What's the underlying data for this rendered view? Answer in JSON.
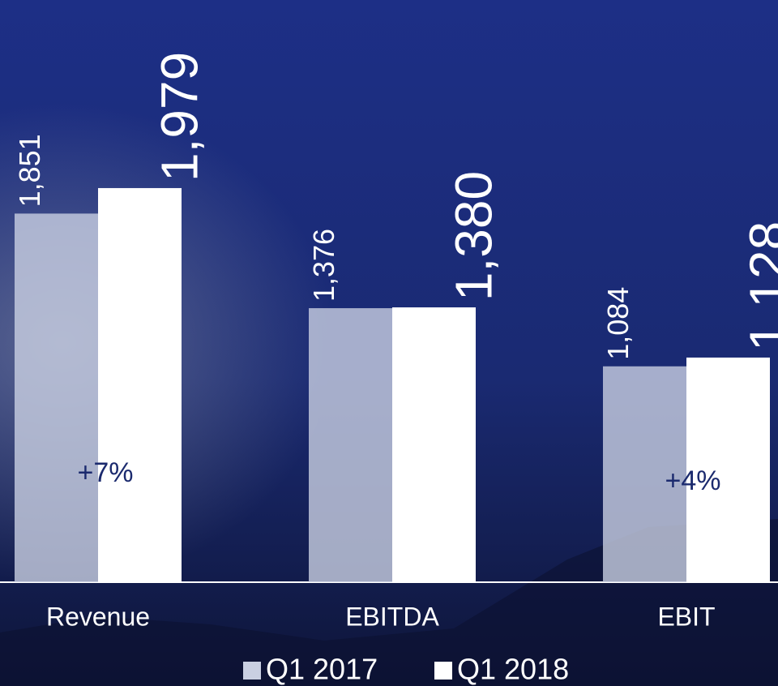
{
  "chart_data": {
    "type": "bar",
    "categories": [
      "Revenue",
      "EBITDA",
      "EBIT"
    ],
    "series": [
      {
        "name": "Q1 2017",
        "color": "#c9cfe2",
        "values": [
          1851,
          1376,
          1084
        ],
        "value_labels": [
          "1,851",
          "1,376",
          "1,084"
        ]
      },
      {
        "name": "Q1 2018",
        "color": "#ffffff",
        "values": [
          1979,
          1380,
          1128
        ],
        "value_labels": [
          "1,979",
          "1,380",
          "1,128"
        ]
      }
    ],
    "annotations": [
      "+7%",
      "+4%"
    ],
    "annotation_color": "#1b2a6e",
    "legend": "bottom"
  }
}
